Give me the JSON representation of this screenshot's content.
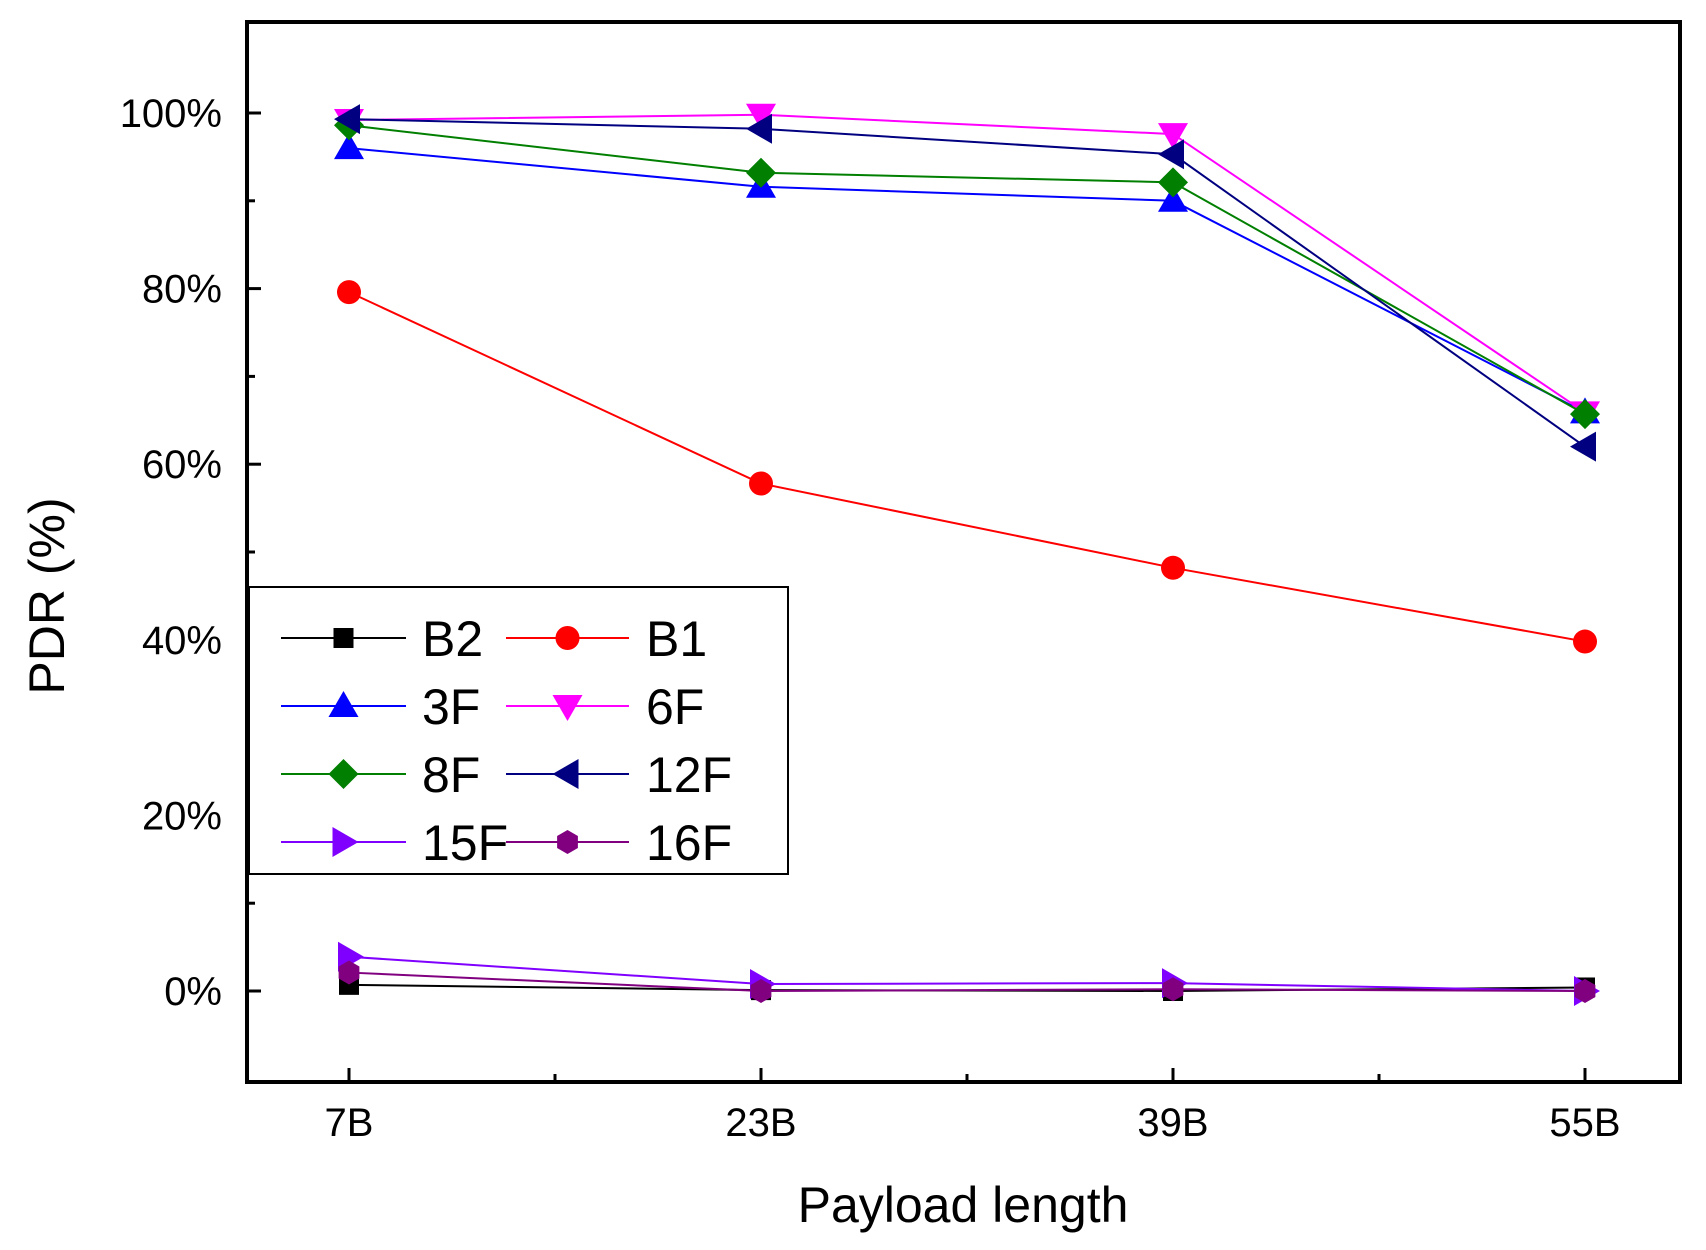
{
  "chart_data": {
    "type": "line",
    "title": "",
    "xlabel": "Payload length",
    "ylabel": "PDR (%)",
    "categories": [
      "7B",
      "23B",
      "39B",
      "55B"
    ],
    "ylim": [
      -10,
      110
    ],
    "yticks": [
      0,
      20,
      40,
      60,
      80,
      100
    ],
    "ytick_labels": [
      "0%",
      "20%",
      "40%",
      "60%",
      "80%",
      "100%"
    ],
    "grid": false,
    "legend_position": "center-left",
    "series": [
      {
        "name": "B2",
        "color": "#000000",
        "marker": "square",
        "values": [
          0.7,
          0.1,
          0.0,
          0.4
        ]
      },
      {
        "name": "B1",
        "color": "#ff0000",
        "marker": "circle",
        "values": [
          79.6,
          57.8,
          48.2,
          39.8
        ]
      },
      {
        "name": "3F",
        "color": "#0000ff",
        "marker": "triangle-up",
        "values": [
          96.0,
          91.6,
          90.0,
          65.9
        ]
      },
      {
        "name": "6F",
        "color": "#ff00ff",
        "marker": "triangle-down",
        "values": [
          99.2,
          99.8,
          97.6,
          65.9
        ]
      },
      {
        "name": "8F",
        "color": "#007f00",
        "marker": "diamond",
        "values": [
          98.6,
          93.2,
          92.1,
          65.7
        ]
      },
      {
        "name": "12F",
        "color": "#000080",
        "marker": "triangle-left",
        "values": [
          99.3,
          98.2,
          95.3,
          62.0
        ]
      },
      {
        "name": "15F",
        "color": "#8000ff",
        "marker": "triangle-right",
        "values": [
          3.9,
          0.8,
          0.9,
          0.0
        ]
      },
      {
        "name": "16F",
        "color": "#800080",
        "marker": "hexagon",
        "values": [
          2.1,
          0.0,
          0.2,
          0.0
        ]
      }
    ]
  }
}
